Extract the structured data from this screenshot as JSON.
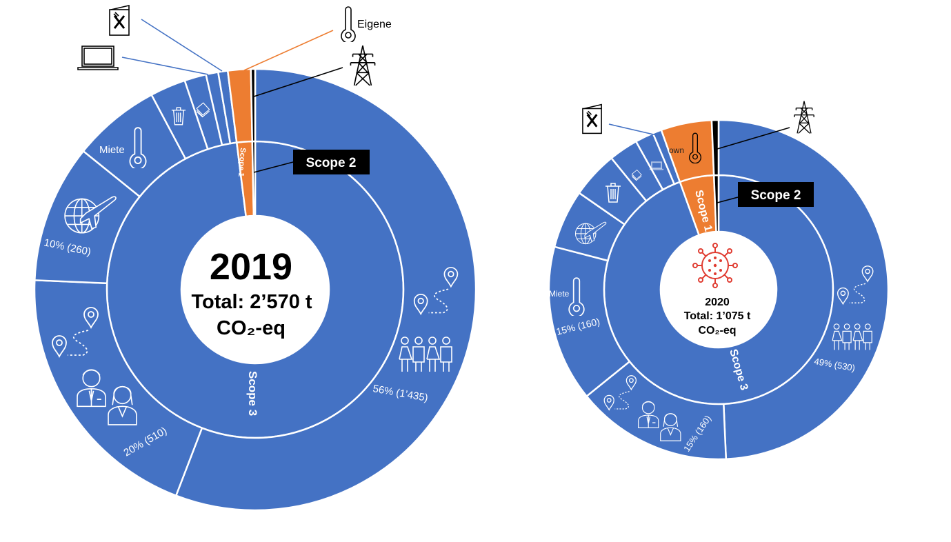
{
  "colors": {
    "scope3": "#4472c4",
    "scope1": "#ed7d31",
    "scope2": "#000000",
    "virus": "#e03c31",
    "separator": "#ffffff"
  },
  "chart_data": [
    {
      "type": "sunburst",
      "center": {
        "year": "2019",
        "total": "Total: 2’570 t",
        "unit": "CO₂-eq"
      },
      "inner_ring": [
        {
          "label": "Scope 3",
          "value": 2519,
          "color": "#4472c4"
        },
        {
          "label": "Scope 1",
          "value": 43,
          "color": "#ed7d31"
        },
        {
          "label": "Scope 2",
          "value": 8,
          "color": "#000000"
        }
      ],
      "outer_ring": [
        {
          "icon": "commute-route-people-icon",
          "value": 1435,
          "label": "56% (1’435)",
          "scope": "Scope 3"
        },
        {
          "icon": "business-travel-icon",
          "value": 510,
          "label": "20% (510)",
          "scope": "Scope 3"
        },
        {
          "icon": "globe-plane-icon",
          "value": 260,
          "label": "10% (260)",
          "scope": "Scope 3"
        },
        {
          "icon": "thermometer-icon",
          "value": 165,
          "text": "Miete",
          "scope": "Scope 3"
        },
        {
          "icon": "trash-icon",
          "value": 67,
          "scope": "Scope 3"
        },
        {
          "icon": "paper-icon",
          "value": 41,
          "scope": "Scope 3"
        },
        {
          "icon": "laptop-icon",
          "value": 23,
          "scope": "Scope 3"
        },
        {
          "icon": "menu-food-icon",
          "value": 18,
          "scope": "Scope 3"
        },
        {
          "icon": "thermometer-icon",
          "value": 43,
          "text": "Eigene",
          "scope": "Scope 1"
        },
        {
          "icon": "power-tower-icon",
          "value": 8,
          "scope": "Scope 2"
        }
      ]
    },
    {
      "type": "sunburst",
      "center": {
        "year": "2020",
        "total": "Total: 1’075 t",
        "unit": "CO₂-eq",
        "icon": "virus-icon"
      },
      "inner_ring": [
        {
          "label": "Scope 3",
          "value": 1016,
          "color": "#4472c4"
        },
        {
          "label": "Scope 1",
          "value": 52,
          "color": "#ed7d31"
        },
        {
          "label": "Scope 2",
          "value": 7,
          "color": "#000000"
        }
      ],
      "outer_ring": [
        {
          "icon": "commute-route-people-icon",
          "value": 530,
          "label": "49% (530)",
          "scope": "Scope 3"
        },
        {
          "icon": "business-travel-icon",
          "value": 160,
          "label": "15% (160)",
          "scope": "Scope 3"
        },
        {
          "icon": "thermometer-icon",
          "value": 160,
          "label": "15% (160)",
          "text": "Miete",
          "scope": "Scope 3"
        },
        {
          "icon": "globe-plane-icon",
          "value": 60,
          "scope": "Scope 3"
        },
        {
          "icon": "trash-icon",
          "value": 48,
          "scope": "Scope 3"
        },
        {
          "icon": "paper-icon",
          "value": 30,
          "scope": "Scope 3"
        },
        {
          "icon": "laptop-icon",
          "value": 19,
          "scope": "Scope 3"
        },
        {
          "icon": "menu-food-icon",
          "value": 9,
          "scope": "Scope 3"
        },
        {
          "icon": "thermometer-icon",
          "value": 52,
          "text": "own",
          "scope": "Scope 1"
        },
        {
          "icon": "power-tower-icon",
          "value": 7,
          "scope": "Scope 2"
        }
      ]
    }
  ]
}
